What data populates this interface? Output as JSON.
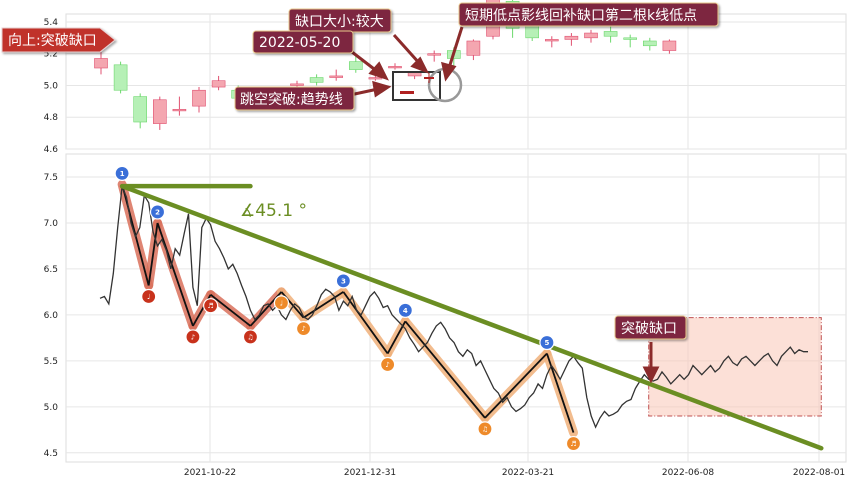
{
  "chart_data": [
    {
      "type": "candlestick",
      "panel": "top",
      "ylim": [
        4.6,
        5.45
      ],
      "y_ticks": [
        "5.4",
        "5.2",
        "5.0",
        "4.8",
        "4.6"
      ],
      "colors": {
        "up": "#f4a6b0",
        "down": "#b6f0b6",
        "up_edge": "#e05070",
        "down_edge": "#6cd86c"
      },
      "candles": [
        {
          "o": 5.11,
          "c": 5.17,
          "h": 5.21,
          "l": 5.07
        },
        {
          "o": 5.13,
          "c": 4.97,
          "h": 5.15,
          "l": 4.95
        },
        {
          "o": 4.93,
          "c": 4.77,
          "h": 4.95,
          "l": 4.73
        },
        {
          "o": 4.76,
          "c": 4.91,
          "h": 4.93,
          "l": 4.72
        },
        {
          "o": 4.84,
          "c": 4.85,
          "h": 4.93,
          "l": 4.81
        },
        {
          "o": 4.87,
          "c": 4.97,
          "h": 4.99,
          "l": 4.83
        },
        {
          "o": 4.99,
          "c": 5.03,
          "h": 5.06,
          "l": 4.97
        },
        {
          "o": 4.97,
          "c": 4.92,
          "h": 5.0,
          "l": 4.9
        },
        {
          "o": 4.9,
          "c": 4.95,
          "h": 4.98,
          "l": 4.87
        },
        {
          "o": 4.86,
          "c": 4.92,
          "h": 4.95,
          "l": 4.85
        },
        {
          "o": 5.0,
          "c": 5.01,
          "h": 5.03,
          "l": 4.98
        },
        {
          "o": 5.05,
          "c": 5.02,
          "h": 5.07,
          "l": 5.0
        },
        {
          "o": 5.05,
          "c": 5.06,
          "h": 5.1,
          "l": 5.03
        },
        {
          "o": 5.15,
          "c": 5.1,
          "h": 5.2,
          "l": 5.08
        },
        {
          "o": 5.05,
          "c": 5.05,
          "h": 5.08,
          "l": 5.03
        },
        {
          "o": 5.12,
          "c": 5.12,
          "h": 5.14,
          "l": 5.1
        },
        {
          "o": 5.06,
          "c": 5.08,
          "h": 5.09,
          "l": 5.04
        },
        {
          "o": 5.2,
          "c": 5.2,
          "h": 5.22,
          "l": 5.15
        },
        {
          "o": 5.22,
          "c": 5.17,
          "h": 5.24,
          "l": 5.1
        },
        {
          "o": 5.19,
          "c": 5.28,
          "h": 5.29,
          "l": 5.16
        },
        {
          "o": 5.31,
          "c": 5.57,
          "h": 5.59,
          "l": 5.29
        },
        {
          "o": 5.53,
          "c": 5.36,
          "h": 5.55,
          "l": 5.3
        },
        {
          "o": 5.38,
          "c": 5.3,
          "h": 5.4,
          "l": 5.28
        },
        {
          "o": 5.28,
          "c": 5.29,
          "h": 5.31,
          "l": 5.24
        },
        {
          "o": 5.29,
          "c": 5.31,
          "h": 5.33,
          "l": 5.25
        },
        {
          "o": 5.3,
          "c": 5.33,
          "h": 5.35,
          "l": 5.27
        },
        {
          "o": 5.34,
          "c": 5.31,
          "h": 5.37,
          "l": 5.27
        },
        {
          "o": 5.3,
          "c": 5.29,
          "h": 5.32,
          "l": 5.24
        },
        {
          "o": 5.28,
          "c": 5.25,
          "h": 5.3,
          "l": 5.22
        },
        {
          "o": 5.22,
          "c": 5.28,
          "h": 5.29,
          "l": 5.2
        }
      ]
    },
    {
      "type": "line",
      "panel": "bottom",
      "ylim": [
        4.4,
        7.75
      ],
      "y_ticks": [
        "7.5",
        "7.0",
        "6.5",
        "6.0",
        "5.5",
        "5.0",
        "4.5"
      ],
      "x_tick_labels": [
        "2021-10-22",
        "2021-12-31",
        "2022-03-21",
        "2022-06-08",
        "2022-08-01"
      ],
      "line_color": "#333333",
      "series": [
        {
          "values": [
            6.18,
            6.2,
            6.12,
            6.45,
            6.95,
            7.4,
            7.28,
            7.0,
            6.85,
            6.95,
            7.3,
            7.22,
            6.9,
            6.75,
            6.82,
            6.7,
            6.5,
            6.72,
            6.65,
            6.88,
            7.1,
            6.3,
            6.1,
            6.95,
            7.05,
            6.98,
            6.8,
            6.72,
            6.62,
            6.5,
            6.55,
            6.45,
            6.32,
            6.2,
            6.05,
            5.95,
            6.0,
            6.1,
            6.12,
            6.05,
            6.1,
            6.0,
            5.95,
            6.05,
            6.12,
            6.08,
            5.98,
            5.95,
            6.0,
            6.1,
            6.22,
            6.28,
            6.25,
            6.2,
            6.05,
            6.15,
            6.1,
            6.2,
            6.05,
            6.0,
            6.1,
            6.2,
            6.25,
            6.18,
            6.08,
            6.1,
            6.0,
            5.95,
            5.9,
            5.85,
            5.75,
            5.68,
            5.6,
            5.65,
            5.7,
            5.8,
            5.88,
            5.92,
            5.85,
            5.75,
            5.7,
            5.6,
            5.55,
            5.62,
            5.58,
            5.45,
            5.5,
            5.4,
            5.3,
            5.2,
            5.15,
            5.05,
            5.1,
            5.0,
            4.95,
            4.98,
            5.02,
            5.1,
            5.15,
            5.25,
            5.2,
            5.35,
            5.45,
            5.38,
            5.3,
            5.4,
            5.5,
            5.55,
            5.48,
            5.42,
            5.1,
            4.9,
            4.78,
            4.88,
            4.95,
            4.9,
            4.92,
            4.95,
            5.02,
            5.06,
            5.08,
            5.2,
            5.28,
            5.35,
            5.3,
            5.28,
            5.3,
            5.38,
            5.32,
            5.25,
            5.3,
            5.35,
            5.3,
            5.35,
            5.45,
            5.4,
            5.35,
            5.4,
            5.45,
            5.38,
            5.42,
            5.5,
            5.55,
            5.48,
            5.45,
            5.52,
            5.55,
            5.5,
            5.45,
            5.5,
            5.55,
            5.58,
            5.5,
            5.45,
            5.55,
            5.6,
            5.65,
            5.58,
            5.62,
            5.6,
            5.6
          ]
        }
      ],
      "trendline": {
        "from": [
          5,
          7.4
        ],
        "to": [
          163,
          4.55
        ],
        "color": "#6b8e23"
      },
      "horizontal_line": {
        "from": [
          5,
          7.4
        ],
        "to": [
          34,
          7.4
        ],
        "color": "#6b8e23"
      },
      "angle_label": "∡45.1 °",
      "zigzag": [
        {
          "i": 5,
          "v": 7.42,
          "kind": "peak",
          "label": "1"
        },
        {
          "i": 11,
          "v": 6.32,
          "kind": "trough",
          "label": "♩"
        },
        {
          "i": 13,
          "v": 7.0,
          "kind": "peak",
          "label": "2"
        },
        {
          "i": 21,
          "v": 5.88,
          "kind": "trough",
          "label": "♪"
        },
        {
          "i": 25,
          "v": 6.22,
          "kind": "trough",
          "label": "♬"
        },
        {
          "i": 34,
          "v": 5.88,
          "kind": "trough",
          "label": "♫"
        },
        {
          "i": 41,
          "v": 6.25,
          "kind": "trough",
          "label": "♩"
        },
        {
          "i": 46,
          "v": 5.97,
          "kind": "trough",
          "label": "♪"
        },
        {
          "i": 55,
          "v": 6.25,
          "kind": "peak",
          "label": "3"
        },
        {
          "i": 65,
          "v": 5.58,
          "kind": "trough",
          "label": "♪"
        },
        {
          "i": 69,
          "v": 5.93,
          "kind": "peak",
          "label": "4"
        },
        {
          "i": 87,
          "v": 4.88,
          "kind": "trough",
          "label": "♫"
        },
        {
          "i": 101,
          "v": 5.58,
          "kind": "peak",
          "label": "5"
        },
        {
          "i": 107,
          "v": 4.72,
          "kind": "trough",
          "label": "♬"
        }
      ],
      "zone": {
        "from_index": 124,
        "to_index": 163,
        "ylim": [
          4.9,
          5.97
        ],
        "fill": "#f9c6b6",
        "edge": "#c05050"
      }
    }
  ],
  "annotations": {
    "up_label": "向上:突破缺口",
    "gap_size": "缺口大小:较大",
    "date": "2022-05-20",
    "jump_label": "跳空突破:趋势线",
    "short_label": "短期低点影线回补缺口第二根k线低点",
    "breakout_label": "突破缺口"
  }
}
